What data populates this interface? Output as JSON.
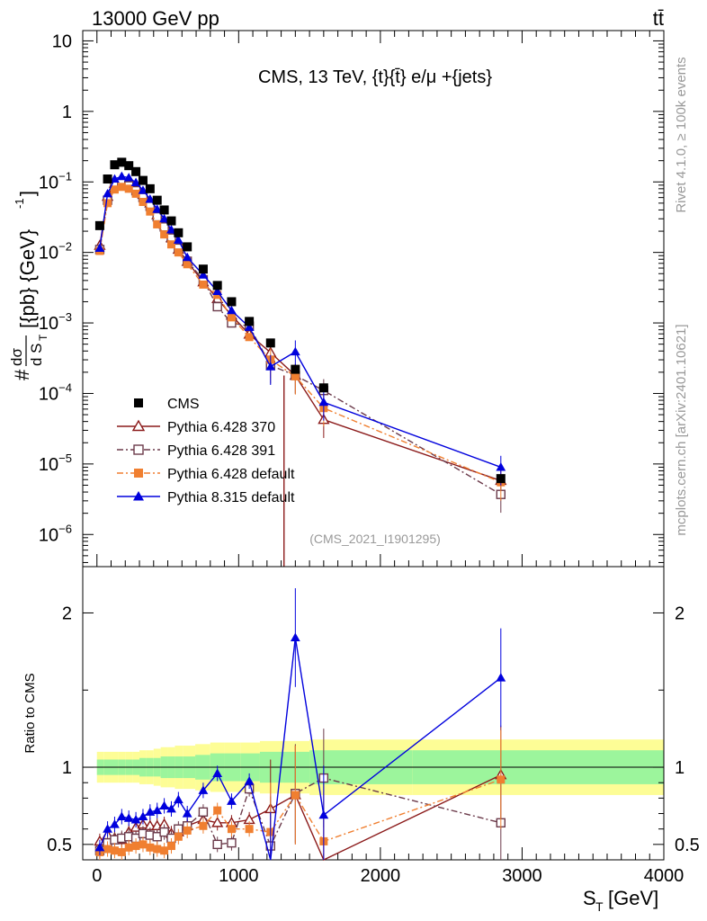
{
  "header": {
    "energy_label": "13000 GeV pp",
    "process_label": "tt̄"
  },
  "side": {
    "rivet_label": "Rivet 4.1.0, ≥ 100k events",
    "mcplots_label": "mcplots.cern.ch [arXiv:2401.10621]"
  },
  "chart_data": {
    "type": "scatter",
    "title": "CMS, 13 TeV, {t}{t̄} e/μ +{jets}",
    "analysis_id": "(CMS_2021_I1901295)",
    "xlabel_main": "S",
    "xlabel_sub": "T",
    "xlabel_unit": "[GeV]",
    "ylabel_main": "#",
    "ylabel_frac_num": "dσ",
    "ylabel_frac_den": "d S",
    "ylabel_frac_den_sub": "T",
    "ylabel_rest": "[{pb} {GeV}",
    "ylabel_rest_sup": "-1",
    "ylabel_rest_end": "]",
    "ratio_ylabel": "Ratio to CMS",
    "xlim": [
      -100,
      4000
    ],
    "ylim_main": [
      3.5e-07,
      14
    ],
    "ylim_ratio": [
      0.4,
      2.3
    ],
    "x_ticks": [
      "0",
      "1000",
      "2000",
      "3000",
      "4000"
    ],
    "x_tick_values": [
      0,
      1000,
      2000,
      3000,
      4000
    ],
    "y_ticks_main": [
      {
        "base": "10",
        "exp": "",
        "value": 10
      },
      {
        "base": "1",
        "exp": "",
        "value": 1
      },
      {
        "base": "10",
        "exp": "−1",
        "value": 0.1
      },
      {
        "base": "10",
        "exp": "−2",
        "value": 0.01
      },
      {
        "base": "10",
        "exp": "−3",
        "value": 0.001
      },
      {
        "base": "10",
        "exp": "−4",
        "value": 0.0001
      },
      {
        "base": "10",
        "exp": "−5",
        "value": 1e-05
      },
      {
        "base": "10",
        "exp": "−6",
        "value": 1e-06
      }
    ],
    "y_ticks_ratio": [
      {
        "label": "2",
        "value": 2
      },
      {
        "label": "1",
        "value": 1
      },
      {
        "label": "0.5",
        "value": 0.5
      }
    ],
    "cms": {
      "name": "CMS",
      "color": "#000000",
      "x": [
        20,
        75,
        125,
        175,
        225,
        275,
        325,
        375,
        425,
        475,
        525,
        575,
        637.5,
        750,
        850,
        950,
        1075,
        1225,
        1400,
        1600,
        2850
      ],
      "y": [
        0.024,
        0.11,
        0.175,
        0.19,
        0.17,
        0.14,
        0.105,
        0.08,
        0.055,
        0.04,
        0.028,
        0.019,
        0.012,
        0.0058,
        0.0034,
        0.002,
        0.00105,
        0.00052,
        0.00022,
        0.00012,
        6.2e-06
      ],
      "band_inner": [
        0.05,
        0.05,
        0.05,
        0.05,
        0.05,
        0.05,
        0.06,
        0.06,
        0.06,
        0.07,
        0.07,
        0.07,
        0.07,
        0.08,
        0.09,
        0.09,
        0.09,
        0.1,
        0.1,
        0.11,
        0.11
      ],
      "band_outer": [
        0.1,
        0.1,
        0.1,
        0.1,
        0.1,
        0.1,
        0.11,
        0.11,
        0.12,
        0.13,
        0.13,
        0.14,
        0.14,
        0.15,
        0.16,
        0.16,
        0.16,
        0.17,
        0.17,
        0.18,
        0.18
      ]
    },
    "series": [
      {
        "name": "Pythia 6.428 370",
        "color": "#8b1a1a",
        "marker": "triangle-open",
        "dash": "",
        "x": [
          20,
          75,
          125,
          175,
          225,
          275,
          325,
          375,
          425,
          475,
          525,
          575,
          637.5,
          750,
          850,
          950,
          1075,
          1225,
          1400,
          1600,
          2850
        ],
        "y": [
          0.0125,
          0.062,
          0.095,
          0.1,
          0.098,
          0.085,
          0.066,
          0.05,
          0.034,
          0.025,
          0.016,
          0.011,
          0.0074,
          0.0038,
          0.0022,
          0.00128,
          0.00069,
          0.00038,
          0.00018,
          4.25e-05,
          5.8e-06
        ],
        "ratio": [
          0.52,
          0.56,
          0.54,
          0.53,
          0.58,
          0.61,
          0.63,
          0.62,
          0.62,
          0.63,
          0.57,
          0.58,
          0.62,
          0.66,
          0.64,
          0.64,
          0.66,
          0.73,
          0.82,
          0.35,
          0.95
        ]
      },
      {
        "name": "Pythia 6.428 391",
        "color": "#6b3a4a",
        "marker": "square-open",
        "dash": "7,3,2,3",
        "x": [
          20,
          75,
          125,
          175,
          225,
          275,
          325,
          375,
          425,
          475,
          525,
          575,
          637.5,
          750,
          850,
          950,
          1075,
          1225,
          1400,
          1600,
          2850
        ],
        "y": [
          0.011,
          0.055,
          0.088,
          0.095,
          0.088,
          0.075,
          0.06,
          0.045,
          0.032,
          0.023,
          0.016,
          0.0115,
          0.0075,
          0.0041,
          0.0017,
          0.001,
          0.0009,
          0.00025,
          0.00018,
          0.00011,
          3.7e-06
        ],
        "ratio": [
          0.46,
          0.51,
          0.53,
          0.54,
          0.55,
          0.54,
          0.57,
          0.56,
          0.55,
          0.58,
          0.54,
          0.6,
          0.62,
          0.71,
          0.5,
          0.51,
          0.86,
          0.49,
          0.83,
          0.93,
          0.64
        ]
      },
      {
        "name": "Pythia 6.428 default",
        "color": "#f07f30",
        "marker": "square-filled",
        "dash": "7,3,2,3",
        "x": [
          20,
          75,
          125,
          175,
          225,
          275,
          325,
          375,
          425,
          475,
          525,
          575,
          637.5,
          750,
          850,
          950,
          1075,
          1225,
          1400,
          1600,
          2850
        ],
        "y": [
          0.0105,
          0.05,
          0.078,
          0.085,
          0.08,
          0.068,
          0.052,
          0.038,
          0.025,
          0.018,
          0.013,
          0.01,
          0.0068,
          0.0035,
          0.0025,
          0.0012,
          0.00063,
          0.0003,
          0.000175,
          6.2e-05,
          5.5e-06
        ],
        "ratio": [
          0.45,
          0.47,
          0.46,
          0.45,
          0.48,
          0.49,
          0.5,
          0.48,
          0.47,
          0.46,
          0.49,
          0.55,
          0.59,
          0.62,
          0.72,
          0.6,
          0.6,
          0.58,
          0.82,
          0.52,
          0.92
        ]
      },
      {
        "name": "Pythia 8.315 default",
        "color": "#0000dd",
        "marker": "triangle-filled",
        "dash": "",
        "x": [
          20,
          75,
          125,
          175,
          225,
          275,
          325,
          375,
          425,
          475,
          525,
          575,
          637.5,
          750,
          850,
          950,
          1075,
          1225,
          1400,
          1600,
          2850
        ],
        "y": [
          0.0115,
          0.068,
          0.11,
          0.12,
          0.115,
          0.098,
          0.076,
          0.057,
          0.041,
          0.03,
          0.021,
          0.015,
          0.0085,
          0.0048,
          0.0028,
          0.0015,
          0.00087,
          0.00024,
          0.00039,
          7.5e-05,
          9e-06
        ],
        "ratio": [
          0.48,
          0.6,
          0.63,
          0.68,
          0.67,
          0.66,
          0.68,
          0.71,
          0.72,
          0.75,
          0.73,
          0.79,
          0.7,
          0.85,
          0.96,
          0.78,
          0.91,
          0.39,
          1.84,
          0.69,
          1.58
        ]
      }
    ]
  }
}
